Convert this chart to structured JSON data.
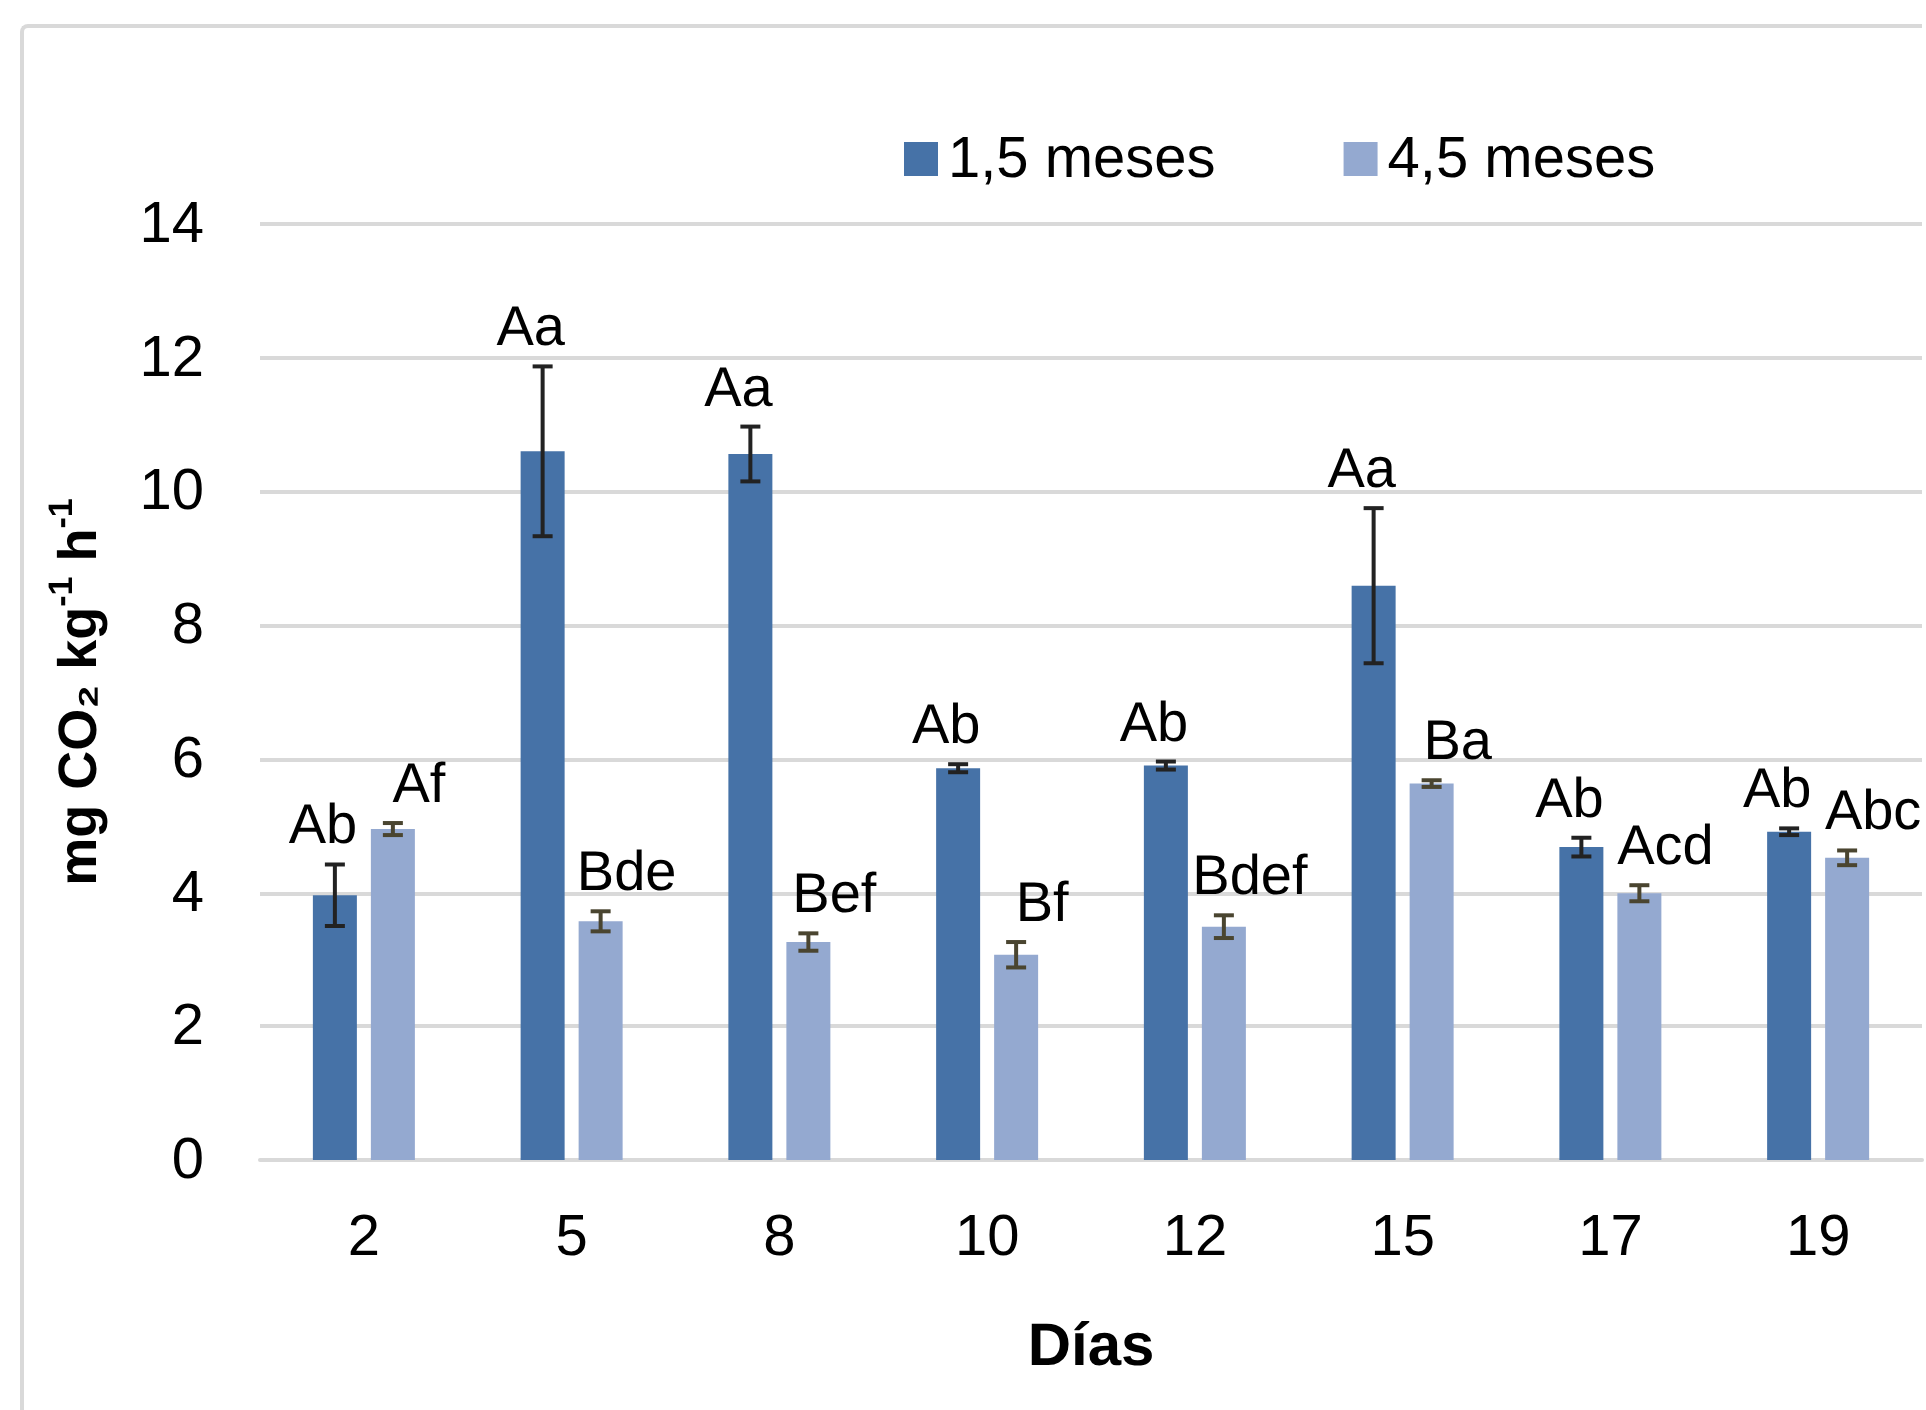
{
  "chart_data": {
    "type": "bar",
    "xlabel": "Días",
    "ylabel": "mg CO₂ kg$^{-1}$ h$^{-1}$",
    "categories": [
      "2",
      "5",
      "8",
      "10",
      "12",
      "15",
      "17",
      "19"
    ],
    "series": [
      {
        "name": "1,5 meses",
        "color": "#4672a7",
        "values": [
          3.96,
          10.6,
          10.56,
          5.86,
          5.9,
          8.59,
          4.68,
          4.91
        ],
        "errors": [
          0.46,
          1.27,
          0.41,
          0.06,
          0.06,
          1.16,
          0.14,
          0.05
        ],
        "value_labels": [
          "Ab",
          "Aa",
          "Aa",
          "Ab",
          "Ab",
          "Aa",
          "Ab",
          "Ab"
        ]
      },
      {
        "name": "4,5 meses",
        "color": "#94a9d0",
        "values": [
          4.95,
          3.57,
          3.26,
          3.07,
          3.49,
          5.63,
          3.99,
          4.52
        ],
        "errors": [
          0.09,
          0.15,
          0.13,
          0.19,
          0.17,
          0.05,
          0.12,
          0.11
        ],
        "value_labels": [
          "Af",
          "Bde",
          "Bef",
          "Bf",
          "Bdef",
          "Ba",
          "Acd",
          "Abc"
        ]
      }
    ],
    "ylim": [
      0,
      14
    ],
    "yticks": [
      0,
      2,
      4,
      6,
      8,
      10,
      12,
      14
    ],
    "grid": "y",
    "legend": "top"
  }
}
